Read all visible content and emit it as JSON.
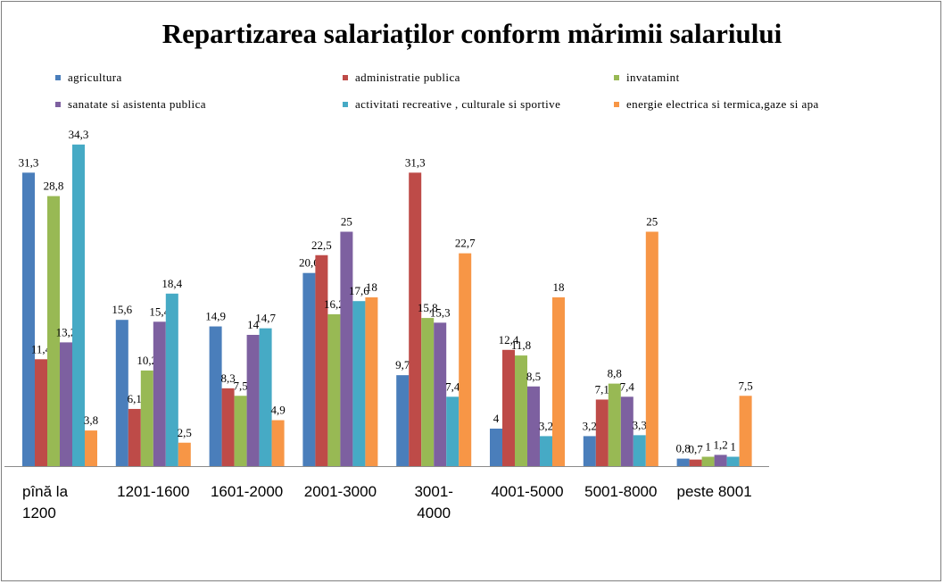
{
  "chart_data": {
    "type": "bar",
    "title": "Repartizarea salariaților conform mărimii salariului",
    "xlabel": "",
    "ylabel": "",
    "ylim": [
      0,
      40
    ],
    "grid": false,
    "legend_position": "top",
    "categories": [
      [
        "pînă la",
        "1200"
      ],
      [
        "1201-1600"
      ],
      [
        "1601-2000"
      ],
      [
        "2001-3000"
      ],
      [
        "3001-",
        "4000"
      ],
      [
        "4001-5000"
      ],
      [
        "5001-8000"
      ],
      [
        "peste 8001"
      ]
    ],
    "series": [
      {
        "name": "agricultura",
        "color": "#4a7ebb",
        "values": [
          31.3,
          15.6,
          14.9,
          20.6,
          9.7,
          4,
          3.2,
          0.8
        ],
        "labels": [
          "31,3",
          "15,6",
          "14,9",
          "20,6",
          "9,7",
          "4",
          "3,2",
          "0,8"
        ]
      },
      {
        "name": "administratie publica",
        "color": "#be4b48",
        "values": [
          11.4,
          6.1,
          8.3,
          22.5,
          31.3,
          12.4,
          7.1,
          0.7
        ],
        "labels": [
          "11,4",
          "6,1",
          "8,3",
          "22,5",
          "31,3",
          "12,4",
          "7,1",
          "0,7"
        ]
      },
      {
        "name": "invatamint",
        "color": "#98b954",
        "values": [
          28.8,
          10.2,
          7.5,
          16.2,
          15.8,
          11.8,
          8.8,
          1
        ],
        "labels": [
          "28,8",
          "10,2",
          "7,5",
          "16,2",
          "15,8",
          "11,8",
          "8,8",
          "1"
        ]
      },
      {
        "name": "sanatate si asistenta publica",
        "color": "#7d60a0",
        "values": [
          13.2,
          15.4,
          14,
          25,
          15.3,
          8.5,
          7.4,
          1.2
        ],
        "labels": [
          "13,2",
          "15,4",
          "14",
          "25",
          "15,3",
          "8,5",
          "7,4",
          "1,2"
        ]
      },
      {
        "name": "activitati recreative , culturale si sportive",
        "color": "#46aac5",
        "values": [
          34.3,
          18.4,
          14.7,
          17.6,
          7.4,
          3.2,
          3.3,
          1
        ],
        "labels": [
          "34,3",
          "18,4",
          "14,7",
          "17,6",
          "7,4",
          "3,2",
          "3,3",
          "1"
        ]
      },
      {
        "name": "energie electrica si termica,gaze si apa",
        "color": "#f79646",
        "values": [
          3.8,
          2.5,
          4.9,
          18,
          22.7,
          18,
          25,
          7.5
        ],
        "labels": [
          "3,8",
          "2,5",
          "4,9",
          "18",
          "22,7",
          "18",
          "25",
          "7,5"
        ]
      }
    ]
  }
}
